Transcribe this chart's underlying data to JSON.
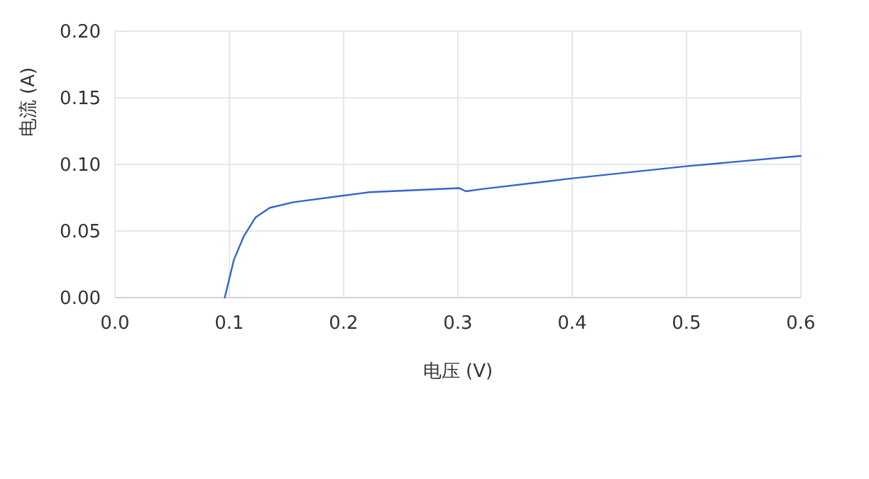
{
  "chart_data": {
    "type": "line",
    "xlabel": "电压 (V)",
    "ylabel": "电流 (A)",
    "x": [
      0.096,
      0.104,
      0.1127,
      0.123,
      0.1354,
      0.156,
      0.1975,
      0.2224,
      0.301,
      0.307,
      0.322,
      0.399,
      0.4998,
      0.6
    ],
    "series": [
      {
        "color": "#3366cc",
        "values": [
          0,
          0.0284,
          0.0461,
          0.0603,
          0.0674,
          0.0716,
          0.0763,
          0.0791,
          0.0822,
          0.0798,
          0.0816,
          0.0894,
          0.0986,
          0.1064
        ]
      }
    ],
    "xlim": [
      0,
      0.6
    ],
    "ylim": [
      0,
      0.2
    ],
    "xticks": [
      {
        "value": 0,
        "label": "0.0"
      },
      {
        "value": 0.1,
        "label": "0.1"
      },
      {
        "value": 0.2,
        "label": "0.2"
      },
      {
        "value": 0.3,
        "label": "0.3"
      },
      {
        "value": 0.4,
        "label": "0.4"
      },
      {
        "value": 0.5,
        "label": "0.5"
      },
      {
        "value": 0.6,
        "label": "0.6"
      }
    ],
    "yticks": [
      {
        "value": 0,
        "label": "0.00"
      },
      {
        "value": 0.05,
        "label": "0.05"
      },
      {
        "value": 0.1,
        "label": "0.10"
      },
      {
        "value": 0.15,
        "label": "0.15"
      },
      {
        "value": 0.2,
        "label": "0.20"
      }
    ],
    "grid": true,
    "marker": "none",
    "line_style": "solid"
  }
}
